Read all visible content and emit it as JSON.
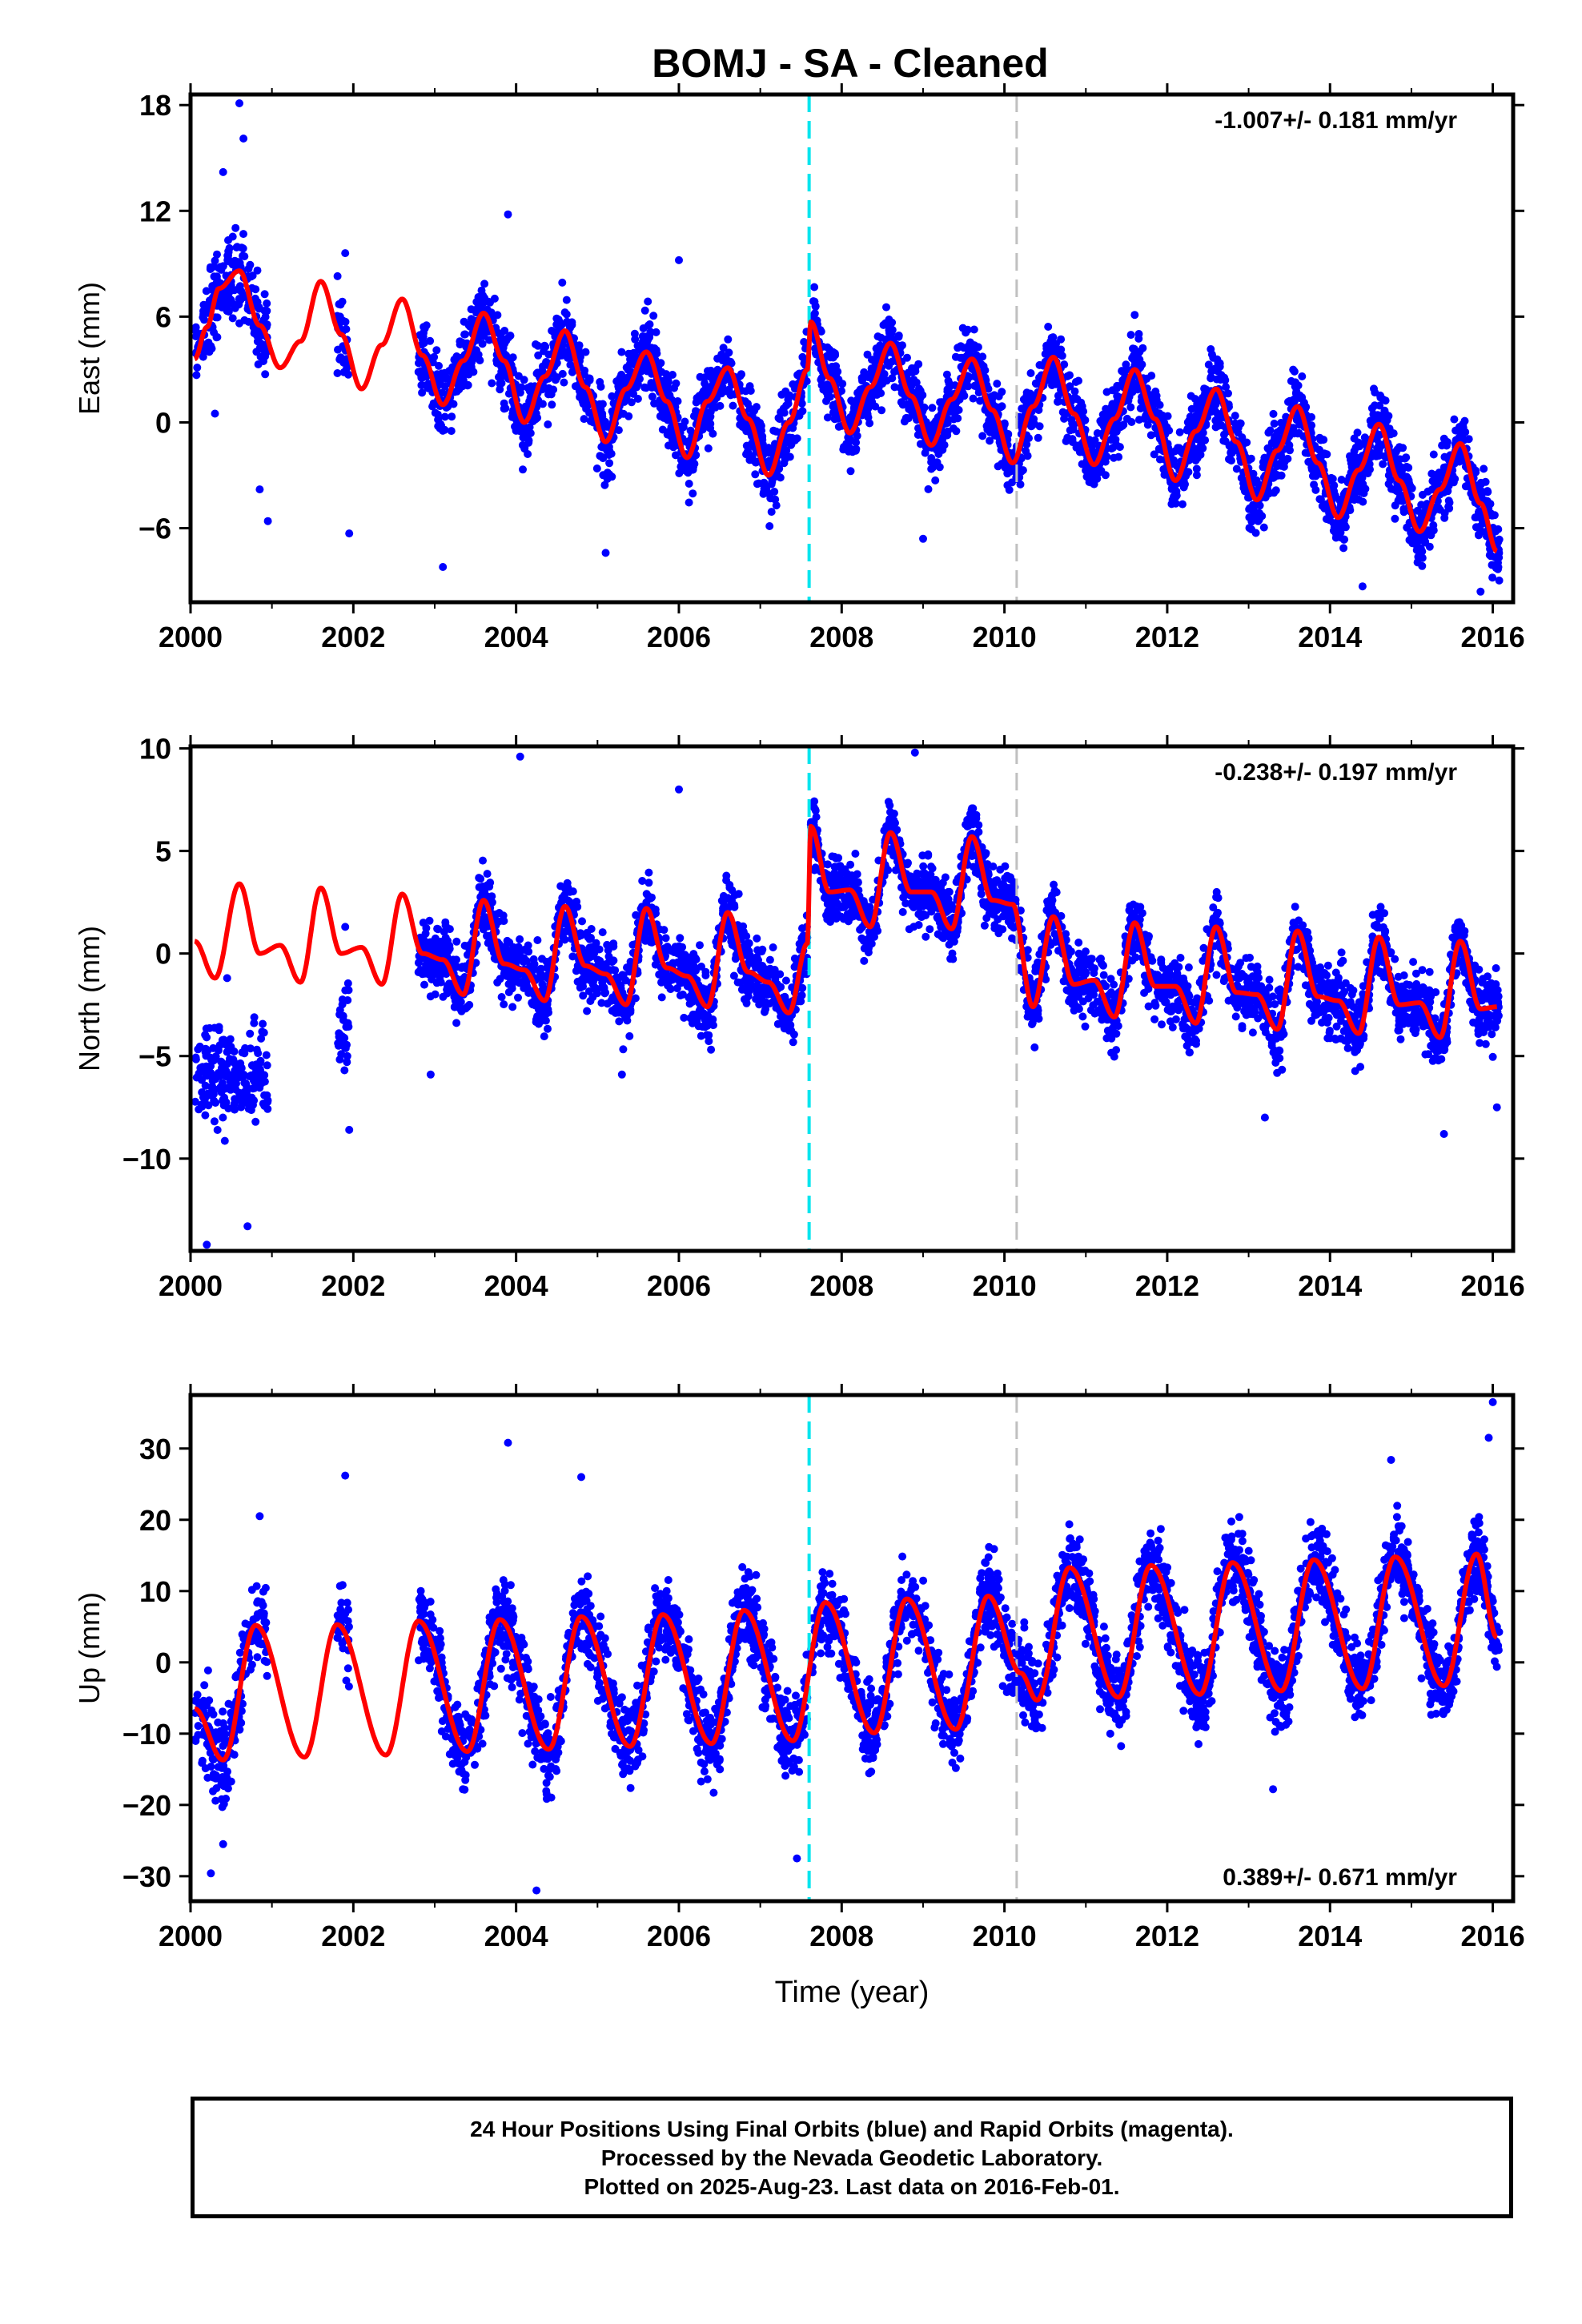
{
  "chart_title": "BOMJ  - SA - Cleaned",
  "x_axis_label": "Time (year)",
  "footer": {
    "line1": "24 Hour Positions Using Final Orbits (blue) and Rapid Orbits (magenta).",
    "line2": "Processed by the Nevada Geodetic Laboratory.",
    "line3": "Plotted on 2025-Aug-23. Last data on 2016-Feb-01."
  },
  "colors": {
    "points": "#0000ff",
    "model": "#ff0000",
    "equipment_change": "#00e5ee",
    "other_event": "#c0c0c0"
  },
  "chart_data": [
    {
      "type": "scatter",
      "panel": "east",
      "ylabel": "East (mm)",
      "rate_label": "-1.007+/- 0.181 mm/yr",
      "xlim": [
        2000.0,
        2016.25
      ],
      "ylim": [
        -10.2,
        18.6
      ],
      "xticks": [
        2000,
        2002,
        2004,
        2006,
        2008,
        2010,
        2012,
        2014,
        2016
      ],
      "yticks": [
        -6,
        0,
        6,
        12,
        18
      ],
      "ytick_labels": [
        "−6",
        "0",
        "6",
        "12",
        "18"
      ],
      "vertical_lines": [
        {
          "x": 2007.6,
          "style": "dashed",
          "color": "cyan"
        },
        {
          "x": 2010.15,
          "style": "dashed",
          "color": "gray"
        }
      ],
      "model_series": {
        "name": "model",
        "points": [
          [
            2000.05,
            3.6
          ],
          [
            2000.2,
            5.4
          ],
          [
            2000.35,
            7.6
          ],
          [
            2000.6,
            8.6
          ],
          [
            2000.85,
            5.5
          ],
          [
            2001.1,
            3.1
          ],
          [
            2001.35,
            4.6
          ],
          [
            2001.6,
            8.0
          ],
          [
            2001.85,
            5.0
          ],
          [
            2002.1,
            1.9
          ],
          [
            2002.35,
            4.4
          ],
          [
            2002.6,
            7.0
          ],
          [
            2002.85,
            3.8
          ],
          [
            2003.1,
            1.0
          ],
          [
            2003.35,
            3.5
          ],
          [
            2003.6,
            6.2
          ],
          [
            2003.85,
            3.5
          ],
          [
            2004.1,
            0.0
          ],
          [
            2004.35,
            2.6
          ],
          [
            2004.6,
            5.2
          ],
          [
            2004.85,
            2.0
          ],
          [
            2005.1,
            -1.1
          ],
          [
            2005.35,
            1.9
          ],
          [
            2005.6,
            4.0
          ],
          [
            2005.85,
            1.2
          ],
          [
            2006.1,
            -2.0
          ],
          [
            2006.35,
            1.2
          ],
          [
            2006.6,
            3.1
          ],
          [
            2006.85,
            0.2
          ],
          [
            2007.1,
            -3.0
          ],
          [
            2007.35,
            0.0
          ],
          [
            2007.58,
            3.0
          ],
          [
            2007.62,
            5.7
          ],
          [
            2007.85,
            2.5
          ],
          [
            2008.1,
            -0.6
          ],
          [
            2008.35,
            2.0
          ],
          [
            2008.6,
            4.5
          ],
          [
            2008.85,
            1.5
          ],
          [
            2009.1,
            -1.3
          ],
          [
            2009.35,
            1.3
          ],
          [
            2009.6,
            3.6
          ],
          [
            2009.85,
            0.7
          ],
          [
            2010.1,
            -2.3
          ],
          [
            2010.35,
            0.9
          ],
          [
            2010.6,
            3.7
          ],
          [
            2010.85,
            0.5
          ],
          [
            2011.1,
            -2.4
          ],
          [
            2011.35,
            0.2
          ],
          [
            2011.6,
            3.0
          ],
          [
            2011.85,
            0.2
          ],
          [
            2012.1,
            -3.3
          ],
          [
            2012.35,
            -0.5
          ],
          [
            2012.6,
            1.9
          ],
          [
            2012.85,
            -1.1
          ],
          [
            2013.1,
            -4.4
          ],
          [
            2013.35,
            -1.6
          ],
          [
            2013.6,
            0.9
          ],
          [
            2013.85,
            -2.3
          ],
          [
            2014.1,
            -5.4
          ],
          [
            2014.35,
            -2.7
          ],
          [
            2014.6,
            -0.1
          ],
          [
            2014.85,
            -3.3
          ],
          [
            2015.1,
            -6.2
          ],
          [
            2015.35,
            -3.8
          ],
          [
            2015.6,
            -1.2
          ],
          [
            2015.85,
            -4.6
          ],
          [
            2016.05,
            -7.3
          ]
        ]
      },
      "observations": {
        "name": "24 Hour Positions (Final Orbits)",
        "segments": [
          {
            "x_range": [
              2000.05,
              2000.95
            ],
            "count": 210,
            "spread": 2.5,
            "outliers": [
              [
                2000.6,
                18.1
              ],
              [
                2000.4,
                14.2
              ],
              [
                2000.65,
                16.1
              ],
              [
                2000.85,
                -3.8
              ],
              [
                2000.95,
                -5.6
              ],
              [
                2000.3,
                0.5
              ]
            ]
          },
          {
            "x_range": [
              2001.8,
              2001.95
            ],
            "count": 30,
            "spread": 2.5,
            "outliers": [
              [
                2001.9,
                9.6
              ],
              [
                2001.95,
                -6.3
              ]
            ]
          },
          {
            "x_range": [
              2002.8,
              2007.58
            ],
            "count": 1300,
            "spread": 1.9,
            "outliers": [
              [
                2003.9,
                11.8
              ],
              [
                2003.1,
                -8.2
              ],
              [
                2005.1,
                -7.4
              ],
              [
                2006.0,
                9.2
              ]
            ]
          },
          {
            "x_range": [
              2007.62,
              2016.08
            ],
            "count": 2300,
            "spread": 1.8,
            "outliers": [
              [
                2011.6,
                6.1
              ],
              [
                2014.4,
                -9.3
              ],
              [
                2015.85,
                -9.6
              ],
              [
                2009.0,
                -6.6
              ]
            ]
          }
        ]
      }
    },
    {
      "type": "scatter",
      "panel": "north",
      "ylabel": "North (mm)",
      "rate_label": "-0.238+/- 0.197 mm/yr",
      "xlim": [
        2000.0,
        2016.25
      ],
      "ylim": [
        -14.5,
        10.1
      ],
      "xticks": [
        2000,
        2002,
        2004,
        2006,
        2008,
        2010,
        2012,
        2014,
        2016
      ],
      "yticks": [
        -10,
        -5,
        0,
        5,
        10
      ],
      "ytick_labels": [
        "−10",
        "−5",
        "0",
        "5",
        "10"
      ],
      "vertical_lines": [
        {
          "x": 2007.6,
          "style": "dashed",
          "color": "cyan"
        },
        {
          "x": 2010.15,
          "style": "dashed",
          "color": "gray"
        }
      ],
      "model_series": {
        "name": "model",
        "points": [
          [
            2000.05,
            0.6
          ],
          [
            2000.3,
            -1.2
          ],
          [
            2000.6,
            3.4
          ],
          [
            2000.85,
            0.0
          ],
          [
            2001.1,
            0.4
          ],
          [
            2001.35,
            -1.4
          ],
          [
            2001.6,
            3.2
          ],
          [
            2001.85,
            0.0
          ],
          [
            2002.1,
            0.3
          ],
          [
            2002.35,
            -1.5
          ],
          [
            2002.6,
            2.9
          ],
          [
            2002.85,
            0.0
          ],
          [
            2003.1,
            -0.3
          ],
          [
            2003.35,
            -2.0
          ],
          [
            2003.6,
            2.6
          ],
          [
            2003.85,
            -0.5
          ],
          [
            2004.1,
            -0.8
          ],
          [
            2004.35,
            -2.3
          ],
          [
            2004.6,
            2.3
          ],
          [
            2004.85,
            -0.6
          ],
          [
            2005.1,
            -1.0
          ],
          [
            2005.35,
            -2.5
          ],
          [
            2005.6,
            2.2
          ],
          [
            2005.85,
            -0.7
          ],
          [
            2006.1,
            -1.1
          ],
          [
            2006.35,
            -2.6
          ],
          [
            2006.6,
            2.0
          ],
          [
            2006.85,
            -0.9
          ],
          [
            2007.1,
            -1.4
          ],
          [
            2007.35,
            -2.9
          ],
          [
            2007.58,
            0.5
          ],
          [
            2007.62,
            6.2
          ],
          [
            2007.85,
            3.0
          ],
          [
            2008.1,
            3.1
          ],
          [
            2008.35,
            1.3
          ],
          [
            2008.6,
            5.9
          ],
          [
            2008.85,
            3.0
          ],
          [
            2009.1,
            3.0
          ],
          [
            2009.35,
            1.2
          ],
          [
            2009.6,
            5.7
          ],
          [
            2009.85,
            2.6
          ],
          [
            2010.1,
            2.4
          ],
          [
            2010.35,
            -2.6
          ],
          [
            2010.6,
            1.8
          ],
          [
            2010.85,
            -1.5
          ],
          [
            2011.1,
            -1.3
          ],
          [
            2011.35,
            -3.1
          ],
          [
            2011.6,
            1.5
          ],
          [
            2011.85,
            -1.6
          ],
          [
            2012.1,
            -1.6
          ],
          [
            2012.35,
            -3.4
          ],
          [
            2012.6,
            1.3
          ],
          [
            2012.85,
            -1.9
          ],
          [
            2013.1,
            -2.0
          ],
          [
            2013.35,
            -3.7
          ],
          [
            2013.6,
            1.1
          ],
          [
            2013.85,
            -2.1
          ],
          [
            2014.1,
            -2.3
          ],
          [
            2014.35,
            -3.9
          ],
          [
            2014.6,
            0.8
          ],
          [
            2014.85,
            -2.5
          ],
          [
            2015.1,
            -2.4
          ],
          [
            2015.35,
            -4.1
          ],
          [
            2015.6,
            0.6
          ],
          [
            2015.85,
            -2.7
          ],
          [
            2016.05,
            -2.6
          ]
        ]
      },
      "observations": {
        "name": "24 Hour Positions (Final Orbits)",
        "segments": [
          {
            "x_range": [
              2000.05,
              2000.95
            ],
            "count": 210,
            "spread": 2.0,
            "center": -6.0,
            "outliers": [
              [
                2000.2,
                -14.2
              ],
              [
                2000.1,
                -7.6
              ],
              [
                2000.7,
                -13.3
              ],
              [
                2000.45,
                -1.2
              ]
            ]
          },
          {
            "x_range": [
              2001.8,
              2001.95
            ],
            "count": 30,
            "spread": 2.0,
            "center": -3.5,
            "outliers": [
              [
                2001.9,
                1.3
              ],
              [
                2001.95,
                -8.6
              ]
            ]
          },
          {
            "x_range": [
              2002.8,
              2007.58
            ],
            "count": 1300,
            "spread": 1.6,
            "outliers": [
              [
                2004.05,
                9.6
              ],
              [
                2002.95,
                -5.9
              ],
              [
                2005.3,
                -5.9
              ],
              [
                2006.0,
                8.0
              ]
            ]
          },
          {
            "x_range": [
              2007.62,
              2016.08
            ],
            "count": 2300,
            "spread": 1.5,
            "outliers": [
              [
                2008.9,
                9.8
              ],
              [
                2013.2,
                -8.0
              ],
              [
                2015.4,
                -8.8
              ],
              [
                2016.05,
                -7.5
              ]
            ]
          }
        ]
      }
    },
    {
      "type": "scatter",
      "panel": "up",
      "ylabel": "Up (mm)",
      "rate_label": "0.389+/- 0.671 mm/yr",
      "xlim": [
        2000.0,
        2016.25
      ],
      "ylim": [
        -33.5,
        37.5
      ],
      "xticks": [
        2000,
        2002,
        2004,
        2006,
        2008,
        2010,
        2012,
        2014,
        2016
      ],
      "yticks": [
        -30,
        -20,
        -10,
        0,
        10,
        20,
        30
      ],
      "ytick_labels": [
        "−30",
        "−20",
        "−10",
        "0",
        "10",
        "20",
        "30"
      ],
      "vertical_lines": [
        {
          "x": 2007.6,
          "style": "dashed",
          "color": "cyan"
        },
        {
          "x": 2010.15,
          "style": "dashed",
          "color": "gray"
        }
      ],
      "model_series": {
        "name": "model",
        "points": [
          [
            2000.05,
            -6.5
          ],
          [
            2000.4,
            -13.7
          ],
          [
            2000.8,
            5.2
          ],
          [
            2001.4,
            -13.3
          ],
          [
            2001.8,
            5.3
          ],
          [
            2002.4,
            -13.0
          ],
          [
            2002.8,
            5.8
          ],
          [
            2003.4,
            -12.5
          ],
          [
            2003.8,
            6.0
          ],
          [
            2004.4,
            -12.2
          ],
          [
            2004.8,
            6.4
          ],
          [
            2005.4,
            -11.8
          ],
          [
            2005.8,
            6.7
          ],
          [
            2006.4,
            -11.4
          ],
          [
            2006.8,
            7.3
          ],
          [
            2007.4,
            -11.0
          ],
          [
            2007.8,
            8.4
          ],
          [
            2008.4,
            -9.9
          ],
          [
            2008.8,
            8.9
          ],
          [
            2009.4,
            -9.4
          ],
          [
            2009.8,
            9.3
          ],
          [
            2010.2,
            -1.5
          ],
          [
            2010.4,
            -5.3
          ],
          [
            2010.8,
            13.3
          ],
          [
            2011.4,
            -4.9
          ],
          [
            2011.8,
            13.6
          ],
          [
            2012.4,
            -4.5
          ],
          [
            2012.8,
            14.0
          ],
          [
            2013.4,
            -4.0
          ],
          [
            2013.8,
            14.4
          ],
          [
            2014.4,
            -3.7
          ],
          [
            2014.8,
            14.8
          ],
          [
            2015.4,
            -3.3
          ],
          [
            2015.8,
            15.2
          ],
          [
            2016.05,
            3.5
          ]
        ]
      },
      "observations": {
        "name": "24 Hour Positions (Final Orbits)",
        "segments": [
          {
            "x_range": [
              2000.05,
              2000.95
            ],
            "count": 210,
            "spread": 5.5,
            "outliers": [
              [
                2000.25,
                -29.6
              ],
              [
                2000.85,
                20.5
              ],
              [
                2000.4,
                -25.5
              ]
            ]
          },
          {
            "x_range": [
              2001.8,
              2001.95
            ],
            "count": 30,
            "spread": 5.5,
            "outliers": [
              [
                2001.9,
                26.2
              ]
            ]
          },
          {
            "x_range": [
              2002.8,
              2007.58
            ],
            "count": 1300,
            "spread": 5.2,
            "outliers": [
              [
                2003.9,
                30.8
              ],
              [
                2004.25,
                -32.0
              ],
              [
                2004.8,
                26.0
              ],
              [
                2007.45,
                -27.5
              ]
            ]
          },
          {
            "x_range": [
              2007.62,
              2016.08
            ],
            "count": 2300,
            "spread": 5.0,
            "outliers": [
              [
                2016.0,
                36.5
              ],
              [
                2015.95,
                31.5
              ],
              [
                2014.75,
                28.4
              ],
              [
                2013.3,
                -17.8
              ]
            ]
          }
        ]
      }
    }
  ]
}
